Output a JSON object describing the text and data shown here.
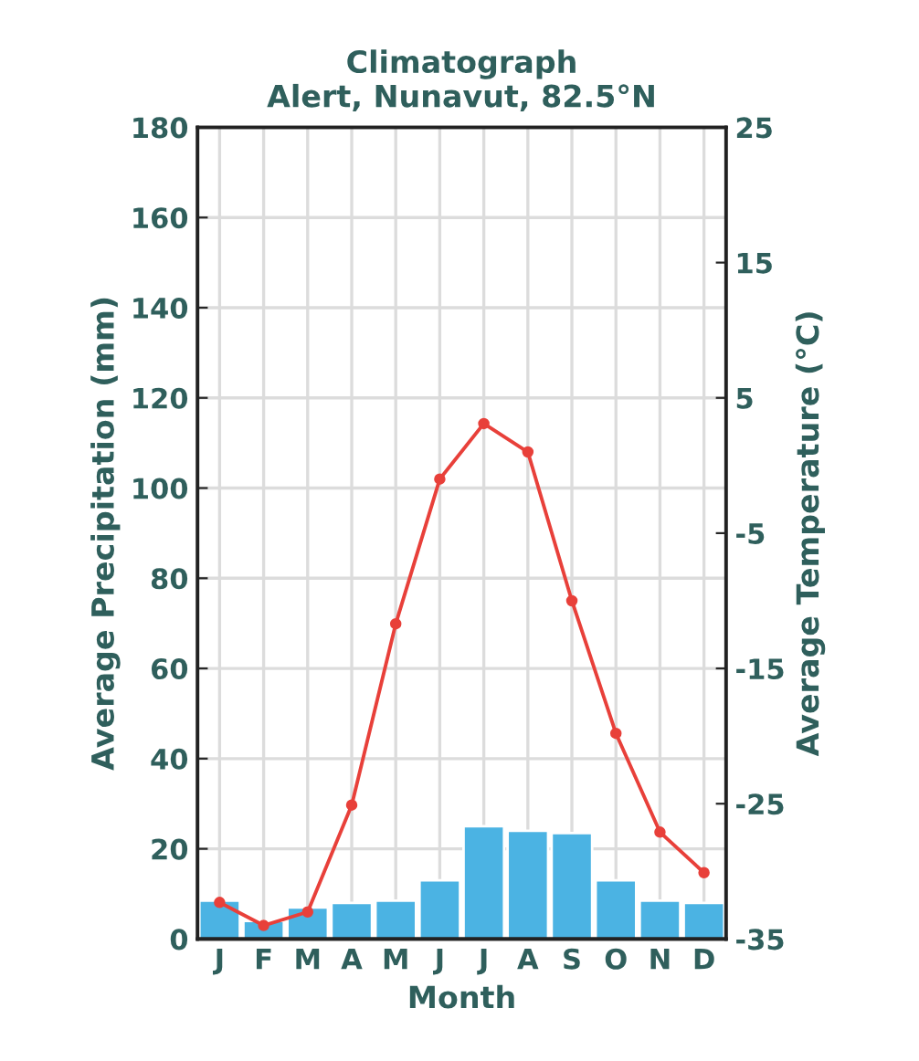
{
  "chart_data": {
    "type": "bar",
    "title": "Climatograph\nAlert, Nunavut, 82.5°N",
    "xlabel": "Month",
    "ylabel": "Average Precipitation (mm)",
    "y2label": "Average Temperature (°C)",
    "categories": [
      "J",
      "F",
      "M",
      "A",
      "M",
      "J",
      "J",
      "A",
      "S",
      "O",
      "N",
      "D"
    ],
    "series": [
      {
        "color": "#4bb3e3",
        "values": [
          8.5,
          4,
          7,
          8,
          8.5,
          13,
          25,
          24,
          23.5,
          13,
          8.5,
          8
        ]
      },
      {
        "type": "line",
        "axis": "y2",
        "color": "#e8403a",
        "marker": "circle",
        "line_style": "solid",
        "values": [
          -32.3,
          -34,
          -33,
          -25.1,
          -11.7,
          -1,
          3.1,
          1,
          -10,
          -19.8,
          -27.1,
          -30.1
        ]
      }
    ],
    "ylim": [
      0,
      180
    ],
    "yticks": [
      0,
      20,
      40,
      60,
      80,
      100,
      120,
      140,
      160,
      180
    ],
    "y2lim": [
      -35,
      25
    ],
    "y2ticks": [
      -35,
      -25,
      -15,
      -5,
      5,
      15,
      25
    ],
    "grid": true,
    "legend": false
  }
}
